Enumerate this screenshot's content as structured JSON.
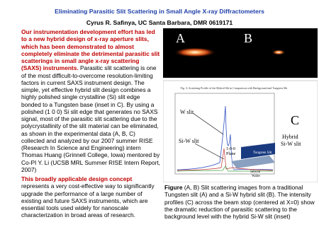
{
  "header": {
    "title": "Eliminating Parasitic Slit Scattering in Small Angle X-ray Diffractometers",
    "author": "Cyrus R. Safinya, UC Santa Barbara, DMR  0619171"
  },
  "body": {
    "paragraphs": [
      {
        "highlight": "Our instrumentation development effort has led to a new hybrid design of x-ray aperture slits, which has been demonstrated to almost completely eliminate the detrimental parasitic slit scatterings in small angle x-ray scattering (SAXS) instruments.",
        "text": " Parasitic slit scattering is one of the most difficult-to-overcome resolution-limiting factors in current SAXS instrument design. The simple, yet effective hybrid slit design combines a highly polished single crystalline (Si) slit edge bonded to a Tungsten base (inset in C). By using a polished (1 0 0) Si slit edge that generates no SAXS signal, most of the parasitic slit scattering due to the polycrystallinity of the slit material can be eliminated, as shown in the experimental data (A, B, C) collected and analyzed by our 2007 summer RISE (Research In Science and Engineering) intern Thomas Huang (Grinnell College, Iowa) mentored by Co-PI Y. Li (UCSB MRL Summer RISE Intern Report, 2007)"
      },
      {
        "highlight": "This broadly applicable design concept",
        "text": " represents a very cost-effective way to significantly upgrade the performance of a large number of existing and future SAXS instruments, which are essential tools used widely for nanoscale characterization in broad areas of research."
      }
    ]
  },
  "figure": {
    "panel_a": "A",
    "panel_b": "B",
    "panel_c": "C",
    "chart_title": "Fig. 3: Scattering Profile of the Hybrid Slit in Comparison with Background and Tungsten Slit",
    "labels": {
      "w_slit": "W slit",
      "si_w_slit": "Si-W slit",
      "hybrid": "Hybrid",
      "hybrid2": "Si-W slit",
      "plane1": "1-0-0",
      "plane2": "Plane",
      "tungsten": "Tungsten Slit",
      "silicon1": "Silicon",
      "silicon2": "Wafer"
    },
    "caption": {
      "lead": "Figure",
      "text": " (A, B) Slit scattering images from a traditional Tungsten slit (A) and a Si-W hybrid slit (B). The intensity profiles (C) across the beam stop (centered at X=0) show the dramatic reduction of parasitic scattering to the background level with the hybrid Si-W slit (inset)"
    }
  }
}
